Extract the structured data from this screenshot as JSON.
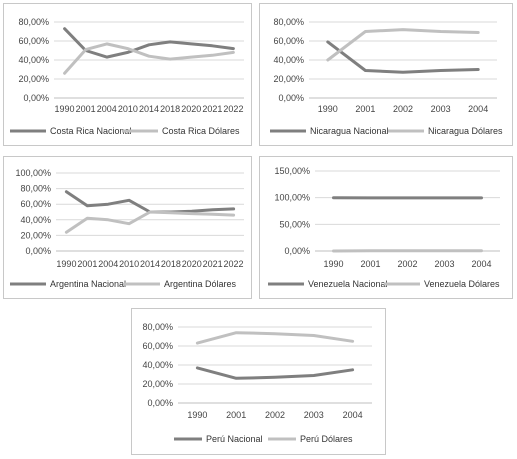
{
  "colors": {
    "nacional": "#7f7f7f",
    "dolares": "#c0c0c0",
    "grid": "#d9d9d9",
    "frame": "#c8c8c8"
  },
  "chart_data": [
    {
      "type": "line",
      "title": "",
      "categories": [
        "1990",
        "2001",
        "2004",
        "2010",
        "2014",
        "2018",
        "2020",
        "2021",
        "2022"
      ],
      "series": [
        {
          "name": "Costa Rica Nacional",
          "values": [
            73,
            50,
            43,
            48,
            56,
            59,
            57,
            55,
            52
          ]
        },
        {
          "name": "Costa Rica Dólares",
          "values": [
            26,
            51,
            57,
            52,
            44,
            41,
            43,
            45,
            48
          ]
        }
      ],
      "ylim": [
        0,
        80
      ],
      "yticks": [
        0,
        20,
        40,
        60,
        80
      ],
      "ytick_labels": [
        "0,00%",
        "20,00%",
        "40,00%",
        "60,00%",
        "80,00%"
      ],
      "grid": true,
      "legend": "bottom"
    },
    {
      "type": "line",
      "title": "",
      "categories": [
        "1990",
        "2001",
        "2002",
        "2003",
        "2004"
      ],
      "series": [
        {
          "name": "Nicaragua Nacional",
          "values": [
            59,
            29,
            27,
            29,
            30
          ]
        },
        {
          "name": "Nicaragua Dólares",
          "values": [
            40,
            70,
            72,
            70,
            69
          ]
        }
      ],
      "ylim": [
        0,
        80
      ],
      "yticks": [
        0,
        20,
        40,
        60,
        80
      ],
      "ytick_labels": [
        "0,00%",
        "20,00%",
        "40,00%",
        "60,00%",
        "80,00%"
      ],
      "grid": true,
      "legend": "bottom"
    },
    {
      "type": "line",
      "title": "",
      "categories": [
        "1990",
        "2001",
        "2004",
        "2010",
        "2014",
        "2018",
        "2020",
        "2021",
        "2022"
      ],
      "series": [
        {
          "name": "Argentina Nacional",
          "values": [
            76,
            58,
            60,
            65,
            50,
            50,
            51,
            53,
            54
          ]
        },
        {
          "name": "Argentina Dólares",
          "values": [
            24,
            42,
            40,
            35,
            50,
            49,
            48,
            47,
            46
          ]
        }
      ],
      "ylim": [
        0,
        100
      ],
      "yticks": [
        0,
        20,
        40,
        60,
        80,
        100
      ],
      "ytick_labels": [
        "0,00%",
        "20,00%",
        "40,00%",
        "60,00%",
        "80,00%",
        "100,00%"
      ],
      "grid": true,
      "legend": "bottom"
    },
    {
      "type": "line",
      "title": "",
      "categories": [
        "1990",
        "2001",
        "2002",
        "2003",
        "2004"
      ],
      "series": [
        {
          "name": "Venezuela Nacional",
          "values": [
            100,
            99.5,
            99.5,
            99.5,
            99.5
          ]
        },
        {
          "name": "Venezuela Dólares",
          "values": [
            0,
            0.3,
            0.3,
            0.3,
            0.5
          ]
        }
      ],
      "ylim": [
        0,
        150
      ],
      "yticks": [
        0,
        50,
        100,
        150
      ],
      "ytick_labels": [
        "0,00%",
        "50,00%",
        "100,00%",
        "150,00%"
      ],
      "grid": true,
      "legend": "bottom"
    },
    {
      "type": "line",
      "title": "",
      "categories": [
        "1990",
        "2001",
        "2002",
        "2003",
        "2004"
      ],
      "series": [
        {
          "name": "Perú Nacional",
          "values": [
            37,
            26,
            27,
            29,
            35
          ]
        },
        {
          "name": "Perú Dólares",
          "values": [
            63,
            74,
            73,
            71,
            65
          ]
        }
      ],
      "ylim": [
        0,
        80
      ],
      "yticks": [
        0,
        20,
        40,
        60,
        80
      ],
      "ytick_labels": [
        "0,00%",
        "20,00%",
        "40,00%",
        "60,00%",
        "80,00%"
      ],
      "grid": true,
      "legend": "bottom"
    }
  ]
}
